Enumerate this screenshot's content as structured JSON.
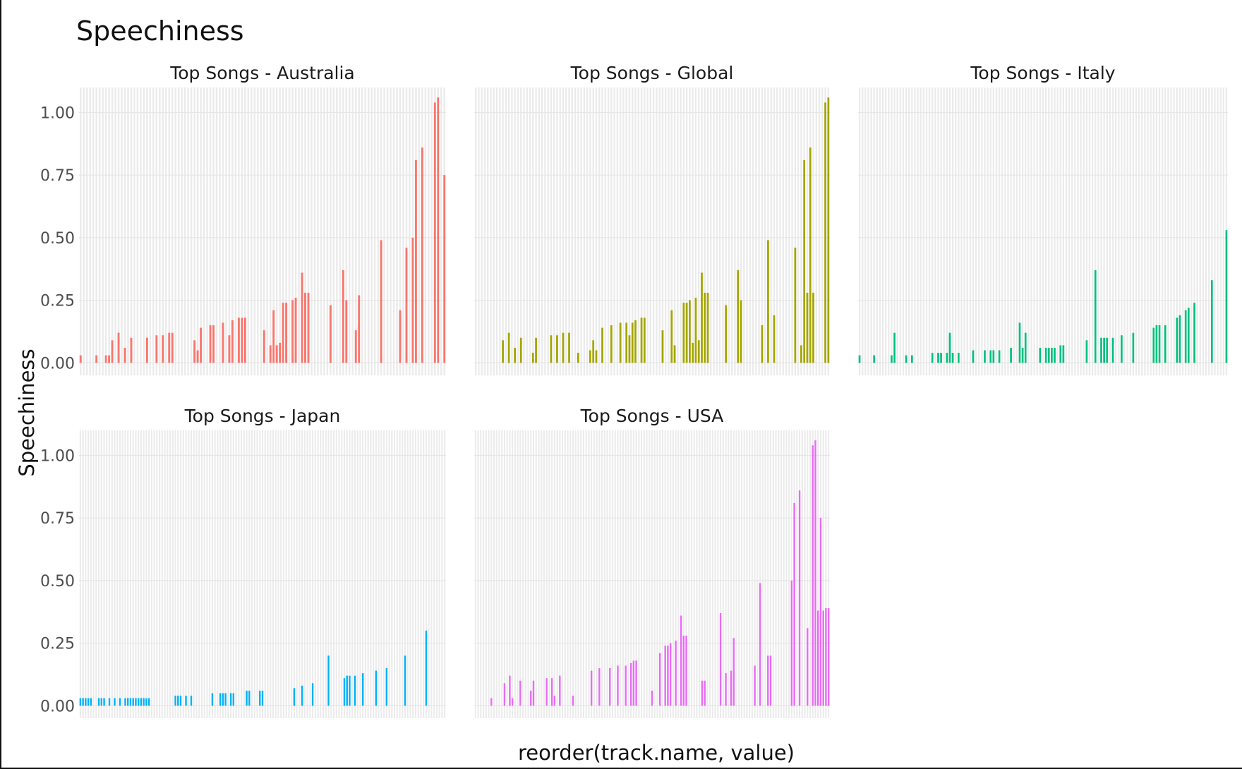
{
  "chart_data": {
    "type": "bar",
    "title": "Speechiness",
    "xlabel": "reorder(track.name, value)",
    "ylabel": "Speechiness",
    "ylim": [
      -0.05,
      1.1
    ],
    "y_ticks": [
      "0.00",
      "0.25",
      "0.50",
      "0.75",
      "1.00"
    ],
    "legend": "none",
    "grid": true,
    "panels": [
      {
        "name": "Top Songs - Australia",
        "color": "#F8766D",
        "values": [
          0.03,
          0,
          0,
          0,
          0,
          0.03,
          0,
          0,
          0.03,
          0.03,
          0.09,
          0,
          0.12,
          0,
          0.06,
          0,
          0.1,
          0,
          0,
          0,
          0,
          0.1,
          0,
          0,
          0.11,
          0,
          0.11,
          0,
          0.12,
          0.12,
          0,
          0,
          0,
          0,
          0,
          0,
          0.09,
          0.05,
          0.14,
          0,
          0,
          0.15,
          0.15,
          0,
          0,
          0.16,
          0,
          0.11,
          0.17,
          0,
          0.18,
          0.18,
          0.18,
          0,
          0,
          0,
          0,
          0,
          0.13,
          0,
          0.07,
          0.21,
          0.07,
          0.08,
          0.24,
          0.24,
          0,
          0.25,
          0.26,
          0,
          0.36,
          0.28,
          0.28,
          0,
          0,
          0,
          0,
          0,
          0,
          0.23,
          0,
          0,
          0,
          0.37,
          0.25,
          0,
          0,
          0.13,
          0.27,
          0,
          0,
          0,
          0,
          0,
          0,
          0.49,
          0,
          0,
          0,
          0,
          0,
          0.21,
          0,
          0.46,
          0,
          0.5,
          0.81,
          0,
          0.86,
          0,
          0,
          0,
          1.04,
          1.06,
          0,
          0.75
        ]
      },
      {
        "name": "Top Songs - Global",
        "color": "#A3A500",
        "values": [
          0,
          0,
          0,
          0,
          0,
          0,
          0,
          0,
          0,
          0.09,
          0,
          0.12,
          0,
          0.06,
          0,
          0.1,
          0,
          0,
          0,
          0.04,
          0.1,
          0,
          0,
          0,
          0,
          0.11,
          0,
          0.11,
          0,
          0.12,
          0,
          0.12,
          0,
          0,
          0.04,
          0,
          0,
          0,
          0.05,
          0.09,
          0.05,
          0,
          0.14,
          0,
          0,
          0.15,
          0,
          0,
          0.16,
          0,
          0.16,
          0.11,
          0.16,
          0.17,
          0,
          0.18,
          0.18,
          0,
          0,
          0,
          0,
          0,
          0.13,
          0,
          0,
          0.21,
          0.07,
          0,
          0,
          0.24,
          0.24,
          0.25,
          0.08,
          0.26,
          0.09,
          0.36,
          0.28,
          0.28,
          0,
          0,
          0,
          0,
          0,
          0.23,
          0,
          0,
          0,
          0.37,
          0.25,
          0,
          0,
          0,
          0,
          0,
          0,
          0.15,
          0,
          0.49,
          0,
          0.19,
          0,
          0,
          0,
          0,
          0,
          0,
          0.46,
          0,
          0.07,
          0.81,
          0.28,
          0.86,
          0.28,
          0,
          0,
          0,
          1.04,
          1.06
        ]
      },
      {
        "name": "Top Songs - Italy",
        "color": "#00BF7D",
        "values": [
          0.03,
          0,
          0,
          0,
          0,
          0.03,
          0,
          0,
          0,
          0,
          0,
          0.03,
          0.12,
          0,
          0,
          0,
          0.03,
          0,
          0.03,
          0,
          0,
          0,
          0,
          0,
          0,
          0.04,
          0,
          0.04,
          0.04,
          0,
          0.04,
          0.12,
          0.04,
          0,
          0.04,
          0,
          0,
          0,
          0,
          0.05,
          0,
          0,
          0,
          0.05,
          0,
          0.05,
          0.05,
          0,
          0.05,
          0,
          0,
          0,
          0.06,
          0,
          0,
          0.16,
          0.06,
          0.12,
          0,
          0,
          0,
          0,
          0.06,
          0,
          0.06,
          0.06,
          0.06,
          0.06,
          0,
          0.07,
          0.07,
          0,
          0,
          0,
          0,
          0,
          0,
          0,
          0.09,
          0,
          0,
          0.37,
          0,
          0.1,
          0.1,
          0.1,
          0,
          0.1,
          0,
          0,
          0.11,
          0,
          0,
          0,
          0.12,
          0,
          0,
          0,
          0,
          0,
          0,
          0.14,
          0.15,
          0.15,
          0,
          0.15,
          0,
          0,
          0,
          0.18,
          0.19,
          0,
          0.21,
          0.22,
          0,
          0.24,
          0,
          0,
          0,
          0,
          0,
          0.33,
          0,
          0,
          0,
          0,
          0.53
        ]
      },
      {
        "name": "Top Songs - Japan",
        "color": "#00B0F6",
        "values": [
          0.03,
          0.03,
          0.03,
          0.03,
          0.03,
          0,
          0,
          0.03,
          0.03,
          0.03,
          0,
          0.03,
          0,
          0.03,
          0,
          0.03,
          0,
          0.03,
          0.03,
          0.03,
          0.03,
          0.03,
          0.03,
          0.03,
          0.03,
          0.03,
          0.03,
          0,
          0,
          0,
          0,
          0,
          0,
          0,
          0,
          0,
          0.04,
          0.04,
          0.04,
          0,
          0.04,
          0,
          0.04,
          0,
          0,
          0,
          0,
          0,
          0,
          0,
          0.05,
          0,
          0,
          0.05,
          0.05,
          0.05,
          0,
          0.05,
          0.05,
          0,
          0,
          0,
          0,
          0.06,
          0.06,
          0,
          0,
          0,
          0.06,
          0.06,
          0,
          0,
          0,
          0,
          0,
          0,
          0,
          0,
          0,
          0,
          0,
          0.07,
          0,
          0,
          0.08,
          0,
          0,
          0,
          0.09,
          0,
          0,
          0,
          0,
          0,
          0.2,
          0,
          0,
          0,
          0,
          0,
          0.11,
          0.12,
          0.12,
          0,
          0.12,
          0,
          0,
          0.13,
          0,
          0,
          0,
          0,
          0.14,
          0,
          0,
          0,
          0.15,
          0,
          0,
          0,
          0,
          0,
          0,
          0.2,
          0,
          0,
          0,
          0,
          0,
          0,
          0,
          0.3,
          0,
          0,
          0,
          0,
          0,
          0,
          0
        ]
      },
      {
        "name": "Top Songs - USA",
        "color": "#E76BF3",
        "values": [
          0,
          0,
          0,
          0,
          0,
          0,
          0.03,
          0,
          0,
          0,
          0,
          0.09,
          0,
          0.12,
          0.03,
          0,
          0,
          0.1,
          0,
          0,
          0,
          0.06,
          0.1,
          0,
          0,
          0,
          0,
          0.11,
          0,
          0.11,
          0.04,
          0,
          0.12,
          0,
          0,
          0,
          0,
          0.04,
          0,
          0,
          0,
          0,
          0,
          0,
          0.14,
          0,
          0,
          0.15,
          0,
          0,
          0,
          0.15,
          0,
          0,
          0.16,
          0,
          0,
          0.16,
          0,
          0.17,
          0.18,
          0.18,
          0,
          0,
          0,
          0,
          0,
          0.06,
          0,
          0,
          0.21,
          0,
          0.24,
          0.24,
          0.25,
          0,
          0.26,
          0,
          0.36,
          0.28,
          0.28,
          0,
          0,
          0,
          0,
          0,
          0.1,
          0.1,
          0,
          0,
          0,
          0,
          0,
          0.37,
          0,
          0.13,
          0,
          0.14,
          0.27,
          0,
          0,
          0,
          0,
          0,
          0,
          0,
          0.16,
          0,
          0.49,
          0,
          0,
          0.2,
          0.2,
          0,
          0,
          0,
          0,
          0,
          0,
          0,
          0.5,
          0.81,
          0,
          0.86,
          0,
          0,
          0.31,
          0,
          1.04,
          1.06,
          0.38,
          0.75,
          0.38,
          0.39,
          0.39
        ]
      }
    ]
  }
}
